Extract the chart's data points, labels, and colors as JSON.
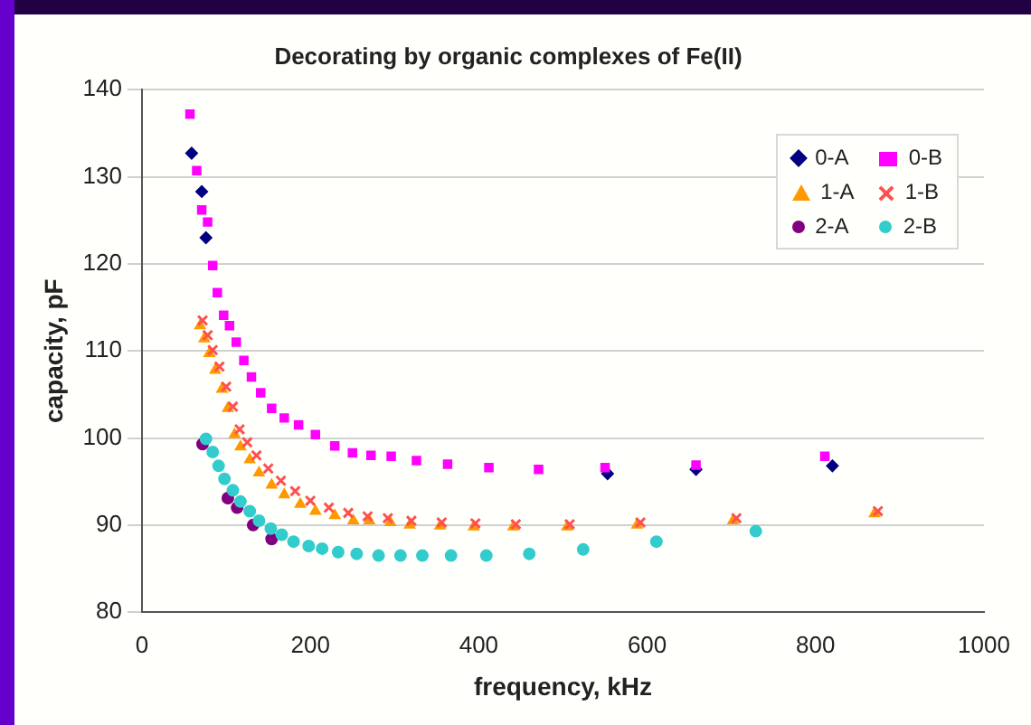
{
  "chart_data": {
    "type": "scatter",
    "title": "Decorating by organic complexes of Fe(II)",
    "xlabel": "frequency, kHz",
    "ylabel": "capacity, pF",
    "xlim": [
      0,
      1000
    ],
    "xticks": [
      0,
      200,
      400,
      600,
      800,
      1000
    ],
    "ylim": [
      80,
      140
    ],
    "yticks": [
      80,
      90,
      100,
      110,
      120,
      130,
      140
    ],
    "grid": "y",
    "legend": "top right",
    "series": [
      {
        "name": "0-A",
        "color": "#000080",
        "marker": "diamond",
        "x": [
          59,
          71,
          76,
          553,
          658,
          820
        ],
        "values": [
          132.7,
          128.3,
          123,
          95.9,
          96.4,
          96.8
        ]
      },
      {
        "name": "0-B",
        "color": "#ff00ff",
        "marker": "square",
        "x": [
          57,
          65,
          71,
          78,
          84,
          89.5,
          97,
          104,
          112,
          121,
          130,
          141,
          154,
          169,
          186,
          206,
          229,
          250,
          272,
          296,
          326,
          363,
          412,
          471,
          550,
          658,
          811
        ],
        "values": [
          137.2,
          130.7,
          126.2,
          124.8,
          119.8,
          116.7,
          114.1,
          112.9,
          111,
          108.9,
          107,
          105.2,
          103.4,
          102.3,
          101.5,
          100.4,
          99.1,
          98.3,
          98,
          97.9,
          97.4,
          97,
          96.6,
          96.4,
          96.6,
          96.9,
          97.9
        ]
      },
      {
        "name": "1-A",
        "color": "#ff9900",
        "marker": "triangle",
        "x": [
          69,
          74,
          80,
          87,
          95,
          102,
          110,
          117,
          128,
          139,
          154,
          169,
          188,
          206,
          229,
          251,
          270,
          295,
          318,
          354,
          394,
          441,
          505,
          588,
          702,
          870
        ],
        "values": [
          112.9,
          111.4,
          109.7,
          107.8,
          105.6,
          103.4,
          100.4,
          99,
          97.5,
          96,
          94.6,
          93.5,
          92.4,
          91.6,
          91.1,
          90.5,
          90.5,
          90.3,
          90,
          89.9,
          89.8,
          89.8,
          89.8,
          90,
          90.5,
          91.3
        ]
      },
      {
        "name": "1-B",
        "color": "#ff5050",
        "marker": "cross",
        "x": [
          72,
          78,
          84,
          92,
          100,
          108,
          116,
          125,
          136,
          150,
          165,
          182,
          200,
          222,
          245,
          268,
          292,
          320,
          356,
          396,
          444,
          508,
          592,
          706,
          874
        ],
        "values": [
          113.5,
          111.8,
          110.1,
          108.2,
          105.9,
          103.6,
          101,
          99.5,
          98,
          96.5,
          95.1,
          93.9,
          92.8,
          92,
          91.4,
          91,
          90.8,
          90.5,
          90.3,
          90.2,
          90.1,
          90.1,
          90.3,
          90.8,
          91.6
        ]
      },
      {
        "name": "2-A",
        "color": "#800080",
        "marker": "circle",
        "x": [
          72,
          102,
          113,
          132,
          154
        ],
        "values": [
          99.3,
          93.1,
          92,
          90,
          88.4
        ]
      },
      {
        "name": "2-B",
        "color": "#33cccc",
        "marker": "circle",
        "x": [
          76,
          84,
          91,
          98,
          108,
          117,
          128,
          139,
          153,
          166,
          180,
          198,
          214,
          233,
          255,
          281,
          307,
          333,
          367,
          409,
          460,
          524,
          611,
          729
        ],
        "values": [
          99.9,
          98.4,
          96.8,
          95.3,
          94,
          92.7,
          91.6,
          90.5,
          89.6,
          88.9,
          88.1,
          87.6,
          87.3,
          86.9,
          86.7,
          86.5,
          86.5,
          86.5,
          86.5,
          86.5,
          86.7,
          87.2,
          88.1,
          89.3
        ]
      }
    ]
  }
}
